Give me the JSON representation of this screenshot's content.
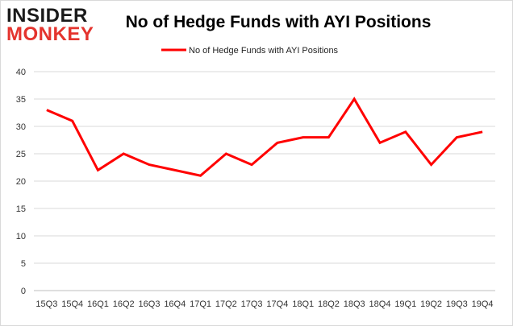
{
  "logo": {
    "line1": "INSIDER",
    "line2": "MONKEY"
  },
  "chart_data": {
    "type": "line",
    "title": "No of Hedge Funds with AYI Positions",
    "xlabel": "",
    "ylabel": "",
    "categories": [
      "15Q3",
      "15Q4",
      "16Q1",
      "16Q2",
      "16Q3",
      "16Q4",
      "17Q1",
      "17Q2",
      "17Q3",
      "17Q4",
      "18Q1",
      "18Q2",
      "18Q3",
      "18Q4",
      "19Q1",
      "19Q2",
      "19Q3",
      "19Q4"
    ],
    "series": [
      {
        "name": "No of Hedge Funds with AYI Positions",
        "values": [
          33,
          31,
          22,
          25,
          23,
          22,
          21,
          25,
          23,
          27,
          28,
          28,
          35,
          27,
          29,
          23,
          28,
          29
        ],
        "color": "#ff0000"
      }
    ],
    "ylim": [
      0,
      40
    ],
    "yticks": [
      0,
      5,
      10,
      15,
      20,
      25,
      30,
      35,
      40
    ],
    "grid": true,
    "legend_position": "top-center"
  }
}
